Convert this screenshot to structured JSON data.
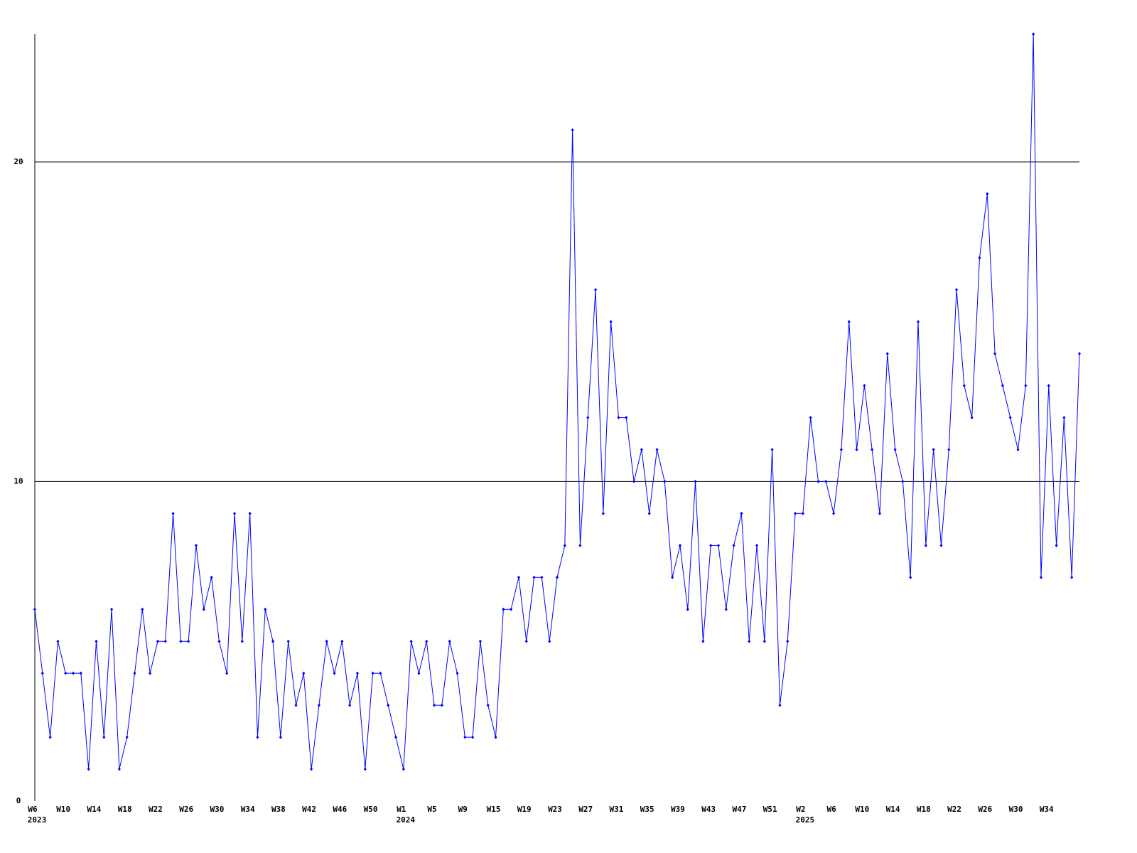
{
  "chart_data": {
    "type": "line",
    "color": "#0000ff",
    "categories": [
      "W6",
      null,
      null,
      null,
      "W10",
      null,
      null,
      null,
      "W14",
      null,
      null,
      null,
      "W18",
      null,
      null,
      null,
      "W22",
      null,
      null,
      null,
      "W26",
      null,
      null,
      null,
      "W30",
      null,
      null,
      null,
      "W34",
      null,
      null,
      null,
      "W38",
      null,
      null,
      null,
      "W42",
      null,
      null,
      null,
      "W46",
      null,
      null,
      null,
      "W50",
      null,
      null,
      null,
      "W1",
      null,
      null,
      null,
      "W5",
      null,
      null,
      null,
      "W9",
      null,
      null,
      null,
      "W15",
      null,
      null,
      null,
      "W19",
      null,
      null,
      null,
      "W23",
      null,
      null,
      null,
      "W27",
      null,
      null,
      null,
      "W31",
      null,
      null,
      null,
      "W35",
      null,
      null,
      null,
      "W39",
      null,
      null,
      null,
      "W43",
      null,
      null,
      null,
      "W47",
      null,
      null,
      null,
      "W51",
      null,
      null,
      null,
      "W2",
      null,
      null,
      null,
      "W6",
      null,
      null,
      null,
      "W10",
      null,
      null,
      null,
      "W14",
      null,
      null,
      null,
      "W18",
      null,
      null,
      null,
      "W22",
      null,
      null,
      null,
      "W26",
      null,
      null,
      null,
      "W30",
      null,
      null,
      null,
      "W34",
      null,
      null,
      null,
      null
    ],
    "years": [
      "2023",
      "2024",
      "2025"
    ],
    "values": [
      6,
      4,
      2,
      5,
      4,
      4,
      4,
      1,
      5,
      2,
      6,
      1,
      2,
      4,
      6,
      4,
      5,
      5,
      9,
      5,
      5,
      8,
      6,
      7,
      5,
      4,
      9,
      5,
      9,
      2,
      6,
      5,
      2,
      5,
      3,
      4,
      1,
      3,
      5,
      4,
      5,
      3,
      4,
      1,
      4,
      4,
      3,
      2,
      1,
      5,
      4,
      5,
      3,
      3,
      5,
      4,
      2,
      2,
      5,
      3,
      2,
      6,
      6,
      7,
      5,
      7,
      7,
      5,
      7,
      8,
      21,
      8,
      12,
      16,
      9,
      15,
      12,
      12,
      10,
      11,
      9,
      11,
      10,
      7,
      8,
      6,
      10,
      5,
      8,
      8,
      6,
      8,
      9,
      5,
      8,
      5,
      11,
      3,
      5,
      9,
      9,
      12,
      10,
      10,
      9,
      11,
      15,
      11,
      13,
      11,
      9,
      14,
      11,
      10,
      7,
      15,
      8,
      11,
      8,
      11,
      16,
      13,
      12,
      17,
      19,
      14,
      13,
      12,
      11,
      13,
      24,
      7,
      13,
      8,
      12,
      7,
      14
    ],
    "ylim": [
      0,
      24
    ],
    "yticks": [
      0,
      10,
      20
    ],
    "grid": true,
    "markers": true
  }
}
